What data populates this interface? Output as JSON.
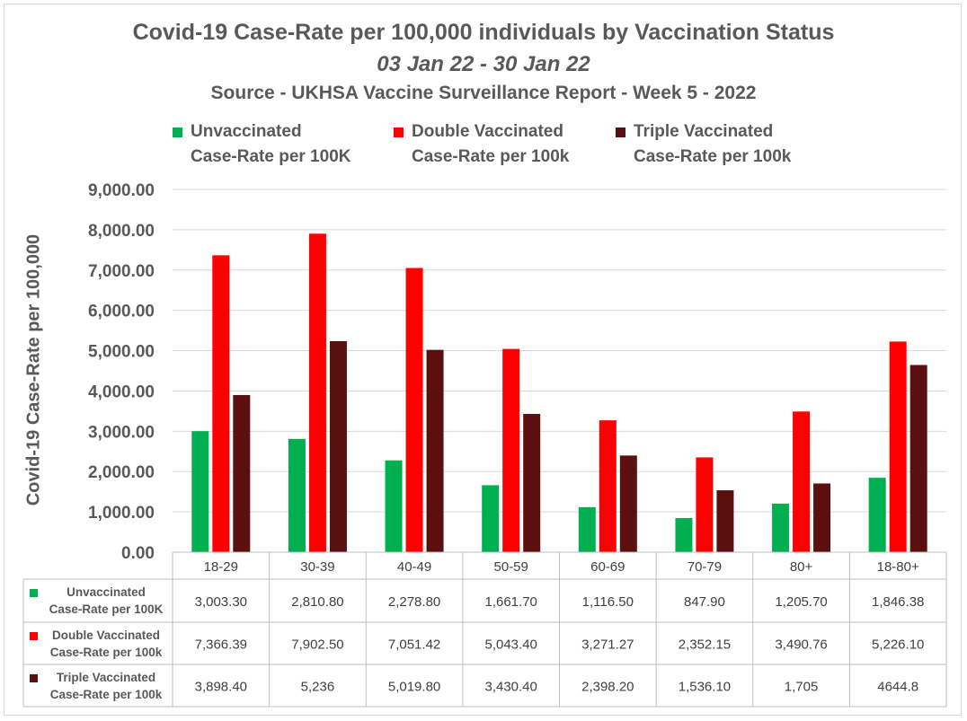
{
  "chart_data": {
    "type": "bar",
    "title": "Covid-19 Case-Rate per 100,000 individuals by Vaccination Status",
    "subtitle": "03 Jan 22 - 30 Jan 22",
    "source": "Source - UKHSA Vaccine Surveillance Report - Week 5 - 2022",
    "ylabel": "Covid-19 Case-Rate per 100,000",
    "xlabel": "",
    "ylim": [
      0,
      9000
    ],
    "yticks": [
      "0.00",
      "1,000.00",
      "2,000.00",
      "3,000.00",
      "4,000.00",
      "5,000.00",
      "6,000.00",
      "7,000.00",
      "8,000.00",
      "9,000.00"
    ],
    "grid": true,
    "legend_position": "top",
    "categories": [
      "18-29",
      "30-39",
      "40-49",
      "50-59",
      "60-69",
      "70-79",
      "80+",
      "18-80+"
    ],
    "series": [
      {
        "name": "Unvaccinated Case-Rate per 100K",
        "legend_line1": "Unvaccinated",
        "legend_line2": "Case-Rate per 100K",
        "color": "#00b050",
        "values": [
          3003.3,
          2810.8,
          2278.8,
          1661.7,
          1116.5,
          847.9,
          1205.7,
          1846.38
        ],
        "table_values": [
          "3,003.30",
          "2,810.80",
          "2,278.80",
          "1,661.70",
          "1,116.50",
          "847.90",
          "1,205.70",
          "1,846.38"
        ]
      },
      {
        "name": "Double Vaccinated Case-Rate per 100k",
        "legend_line1": "Double Vaccinated",
        "legend_line2": "Case-Rate per 100k",
        "color": "#ff0000",
        "values": [
          7366.39,
          7902.5,
          7051.42,
          5043.4,
          3271.27,
          2352.15,
          3490.76,
          5226.1
        ],
        "table_values": [
          "7,366.39",
          "7,902.50",
          "7,051.42",
          "5,043.40",
          "3,271.27",
          "2,352.15",
          "3,490.76",
          "5,226.10"
        ]
      },
      {
        "name": "Triple Vaccinated Case-Rate per 100k",
        "legend_line1": "Triple Vaccinated",
        "legend_line2": "Case-Rate per 100k",
        "color": "#5b0f0f",
        "values": [
          3898.4,
          5236,
          5019.8,
          3430.4,
          2398.2,
          1536.1,
          1705,
          4644.8
        ],
        "table_values": [
          "3,898.40",
          "5,236",
          "5,019.80",
          "3,430.40",
          "2,398.20",
          "1,536.10",
          "1,705",
          "4644.8"
        ]
      }
    ]
  }
}
